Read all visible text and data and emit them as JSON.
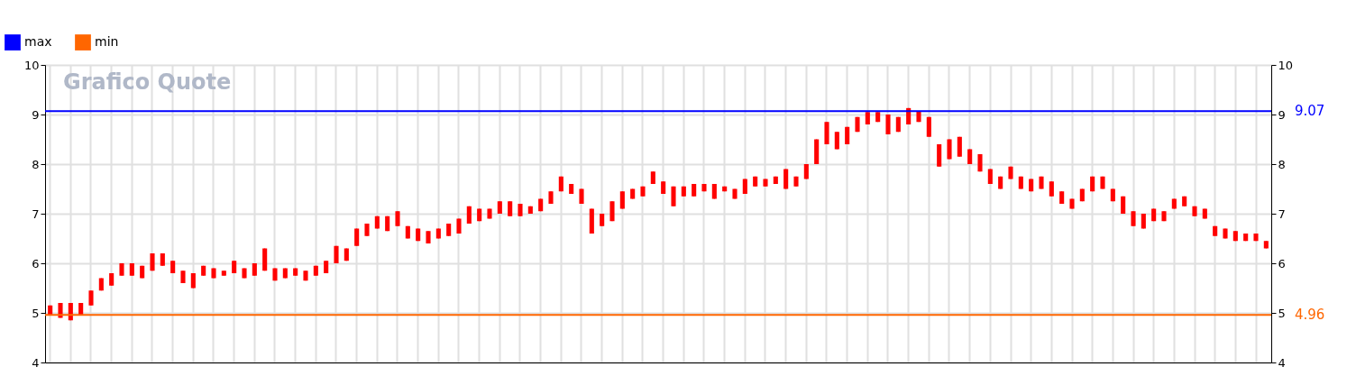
{
  "chart_data": {
    "type": "candlestick",
    "title": "Grafico Quote",
    "categories": [
      null,
      null,
      null,
      null,
      null,
      null,
      null,
      null,
      null,
      null,
      null,
      null,
      null,
      null,
      null,
      null,
      null,
      null,
      null,
      null,
      null,
      null,
      null,
      null,
      null,
      null,
      null,
      null,
      null,
      null,
      null,
      null,
      null,
      null,
      null,
      null,
      null,
      null,
      null,
      null,
      null,
      null,
      null,
      null,
      null,
      null,
      null,
      null,
      null,
      null,
      null,
      null,
      null,
      null,
      null,
      null,
      null,
      null,
      null,
      null,
      null,
      null,
      null,
      null,
      null,
      null,
      null,
      null,
      null,
      null,
      null,
      null,
      null,
      null,
      null,
      null,
      null,
      null,
      null,
      null,
      null,
      null,
      null,
      null,
      null,
      null,
      null,
      null,
      null,
      null,
      null,
      null,
      null,
      null,
      null,
      null,
      null,
      null,
      null,
      null,
      null,
      null,
      null,
      null,
      null,
      null,
      null,
      null,
      null,
      null,
      null,
      null,
      null,
      null,
      null,
      null,
      null,
      null,
      null,
      null
    ],
    "ohlc": [
      [
        4.95,
        5.15,
        4.95,
        5.15
      ],
      [
        4.9,
        5.2,
        4.9,
        5.2
      ],
      [
        4.85,
        5.2,
        4.85,
        5.2
      ],
      [
        4.95,
        5.2,
        4.95,
        5.2
      ],
      [
        5.15,
        5.45,
        5.15,
        5.45
      ],
      [
        5.45,
        5.7,
        5.45,
        5.7
      ],
      [
        5.55,
        5.8,
        5.55,
        5.8
      ],
      [
        5.75,
        6.0,
        5.75,
        6.0
      ],
      [
        5.75,
        6.0,
        5.75,
        6.0
      ],
      [
        5.7,
        5.95,
        5.7,
        5.95
      ],
      [
        5.85,
        6.2,
        5.85,
        6.2
      ],
      [
        5.95,
        6.2,
        5.95,
        6.2
      ],
      [
        5.8,
        6.05,
        5.8,
        6.05
      ],
      [
        5.6,
        5.85,
        5.6,
        5.85
      ],
      [
        5.5,
        5.8,
        5.5,
        5.8
      ],
      [
        5.75,
        5.95,
        5.75,
        5.95
      ],
      [
        5.7,
        5.9,
        5.7,
        5.9
      ],
      [
        5.75,
        5.85,
        5.75,
        5.85
      ],
      [
        5.8,
        6.05,
        5.8,
        6.05
      ],
      [
        5.7,
        5.9,
        5.7,
        5.9
      ],
      [
        5.75,
        6.0,
        5.75,
        6.0
      ],
      [
        5.85,
        6.3,
        5.85,
        6.3
      ],
      [
        5.65,
        5.9,
        5.65,
        5.9
      ],
      [
        5.7,
        5.9,
        5.7,
        5.9
      ],
      [
        5.75,
        5.9,
        5.75,
        5.9
      ],
      [
        5.65,
        5.85,
        5.65,
        5.85
      ],
      [
        5.75,
        5.95,
        5.75,
        5.95
      ],
      [
        5.8,
        6.05,
        5.8,
        6.05
      ],
      [
        6.0,
        6.35,
        6.0,
        6.35
      ],
      [
        6.05,
        6.3,
        6.05,
        6.3
      ],
      [
        6.35,
        6.7,
        6.35,
        6.7
      ],
      [
        6.55,
        6.8,
        6.55,
        6.8
      ],
      [
        6.7,
        6.95,
        6.7,
        6.95
      ],
      [
        6.65,
        6.95,
        6.65,
        6.95
      ],
      [
        6.75,
        7.05,
        6.75,
        7.05
      ],
      [
        6.5,
        6.75,
        6.5,
        6.75
      ],
      [
        6.45,
        6.7,
        6.45,
        6.7
      ],
      [
        6.4,
        6.65,
        6.4,
        6.65
      ],
      [
        6.5,
        6.7,
        6.5,
        6.7
      ],
      [
        6.55,
        6.8,
        6.55,
        6.8
      ],
      [
        6.6,
        6.9,
        6.6,
        6.9
      ],
      [
        6.8,
        7.15,
        6.8,
        7.15
      ],
      [
        6.85,
        7.1,
        6.85,
        7.1
      ],
      [
        6.9,
        7.1,
        6.9,
        7.1
      ],
      [
        7.0,
        7.25,
        7.0,
        7.25
      ],
      [
        6.95,
        7.25,
        6.95,
        7.25
      ],
      [
        6.95,
        7.2,
        6.95,
        7.2
      ],
      [
        7.0,
        7.15,
        7.0,
        7.15
      ],
      [
        7.05,
        7.3,
        7.05,
        7.3
      ],
      [
        7.2,
        7.45,
        7.2,
        7.45
      ],
      [
        7.45,
        7.75,
        7.45,
        7.75
      ],
      [
        7.4,
        7.6,
        7.4,
        7.6
      ],
      [
        7.2,
        7.5,
        7.2,
        7.5
      ],
      [
        6.6,
        7.1,
        6.6,
        7.1
      ],
      [
        6.75,
        7.0,
        6.75,
        7.0
      ],
      [
        6.85,
        7.25,
        6.85,
        7.25
      ],
      [
        7.1,
        7.45,
        7.1,
        7.45
      ],
      [
        7.3,
        7.5,
        7.3,
        7.5
      ],
      [
        7.35,
        7.55,
        7.35,
        7.55
      ],
      [
        7.6,
        7.85,
        7.6,
        7.85
      ],
      [
        7.4,
        7.65,
        7.4,
        7.65
      ],
      [
        7.15,
        7.55,
        7.15,
        7.55
      ],
      [
        7.35,
        7.55,
        7.35,
        7.55
      ],
      [
        7.35,
        7.6,
        7.35,
        7.6
      ],
      [
        7.45,
        7.6,
        7.45,
        7.6
      ],
      [
        7.3,
        7.6,
        7.3,
        7.6
      ],
      [
        7.45,
        7.55,
        7.45,
        7.55
      ],
      [
        7.3,
        7.5,
        7.3,
        7.5
      ],
      [
        7.4,
        7.7,
        7.4,
        7.7
      ],
      [
        7.55,
        7.75,
        7.55,
        7.75
      ],
      [
        7.55,
        7.7,
        7.55,
        7.7
      ],
      [
        7.6,
        7.75,
        7.6,
        7.75
      ],
      [
        7.5,
        7.9,
        7.5,
        7.9
      ],
      [
        7.55,
        7.75,
        7.55,
        7.75
      ],
      [
        7.7,
        8.0,
        7.7,
        8.0
      ],
      [
        8.0,
        8.5,
        8.0,
        8.5
      ],
      [
        8.4,
        8.85,
        8.4,
        8.85
      ],
      [
        8.3,
        8.65,
        8.3,
        8.65
      ],
      [
        8.4,
        8.75,
        8.4,
        8.75
      ],
      [
        8.65,
        8.95,
        8.65,
        8.95
      ],
      [
        8.8,
        9.05,
        8.8,
        9.05
      ],
      [
        8.85,
        9.05,
        8.85,
        9.05
      ],
      [
        8.6,
        9.0,
        8.6,
        9.0
      ],
      [
        8.65,
        8.95,
        8.65,
        8.95
      ],
      [
        8.8,
        9.13,
        8.8,
        9.13
      ],
      [
        8.85,
        9.07,
        8.85,
        9.07
      ],
      [
        8.55,
        8.95,
        8.55,
        8.95
      ],
      [
        7.95,
        8.4,
        7.95,
        8.4
      ],
      [
        8.1,
        8.5,
        8.1,
        8.5
      ],
      [
        8.15,
        8.55,
        8.15,
        8.55
      ],
      [
        8.0,
        8.3,
        8.0,
        8.3
      ],
      [
        7.85,
        8.2,
        7.85,
        8.2
      ],
      [
        7.6,
        7.9,
        7.6,
        7.9
      ],
      [
        7.5,
        7.75,
        7.5,
        7.75
      ],
      [
        7.7,
        7.95,
        7.7,
        7.95
      ],
      [
        7.5,
        7.75,
        7.5,
        7.75
      ],
      [
        7.45,
        7.7,
        7.45,
        7.7
      ],
      [
        7.5,
        7.75,
        7.5,
        7.75
      ],
      [
        7.35,
        7.65,
        7.35,
        7.65
      ],
      [
        7.2,
        7.45,
        7.2,
        7.45
      ],
      [
        7.1,
        7.3,
        7.1,
        7.3
      ],
      [
        7.25,
        7.5,
        7.25,
        7.5
      ],
      [
        7.45,
        7.75,
        7.45,
        7.75
      ],
      [
        7.5,
        7.75,
        7.5,
        7.75
      ],
      [
        7.25,
        7.5,
        7.25,
        7.5
      ],
      [
        7.0,
        7.35,
        7.0,
        7.35
      ],
      [
        6.75,
        7.05,
        6.75,
        7.05
      ],
      [
        6.7,
        7.0,
        6.7,
        7.0
      ],
      [
        6.85,
        7.1,
        6.85,
        7.1
      ],
      [
        6.85,
        7.05,
        6.85,
        7.05
      ],
      [
        7.1,
        7.3,
        7.1,
        7.3
      ],
      [
        7.15,
        7.35,
        7.15,
        7.35
      ],
      [
        6.95,
        7.15,
        6.95,
        7.15
      ],
      [
        6.9,
        7.1,
        6.9,
        7.1
      ],
      [
        6.55,
        6.75,
        6.55,
        6.75
      ],
      [
        6.5,
        6.7,
        6.5,
        6.7
      ],
      [
        6.45,
        6.65,
        6.45,
        6.65
      ],
      [
        6.45,
        6.6,
        6.45,
        6.6
      ],
      [
        6.45,
        6.6,
        6.45,
        6.6
      ],
      [
        6.3,
        6.45,
        6.3,
        6.45
      ]
    ],
    "color": "#ff0000",
    "ylim": [
      4,
      10
    ],
    "yticks": [
      4,
      5,
      6,
      7,
      8,
      9,
      10
    ],
    "y2lim": [
      4,
      10
    ],
    "y2ticks": [
      4,
      5,
      6,
      7,
      8,
      9,
      10
    ],
    "ref_lines": [
      {
        "axis": "y",
        "value": 9.07,
        "label": "max",
        "color": "#0000ff"
      },
      {
        "axis": "y",
        "value": 4.96,
        "label": "min",
        "color": "#ff6600"
      }
    ],
    "annotations": [
      "9.07",
      "4.96"
    ],
    "grid": true,
    "legend": "top left"
  }
}
